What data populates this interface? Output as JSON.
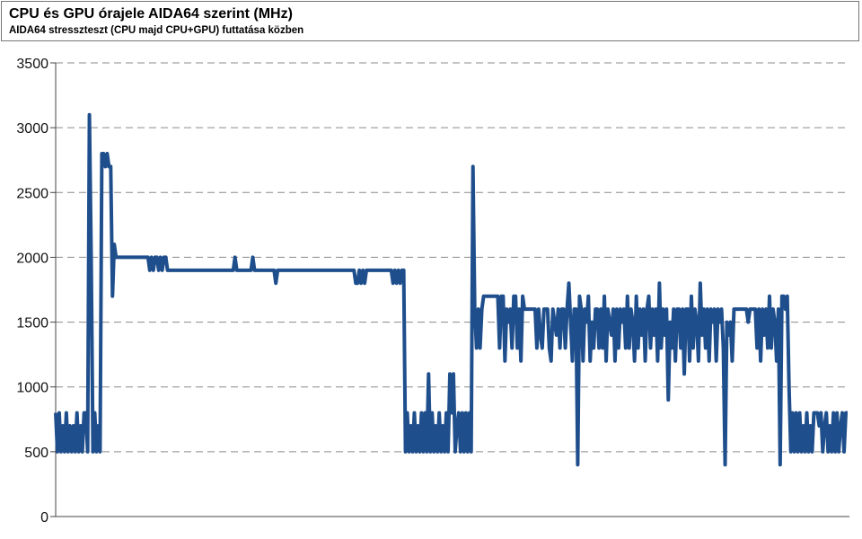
{
  "header": {
    "title": "CPU és GPU órajele AIDA64 szerint (MHz)",
    "subtitle": "AIDA64 stresszteszt (CPU majd CPU+GPU) futtatása közben"
  },
  "chart_data": {
    "type": "line",
    "title": "CPU és GPU órajele AIDA64 szerint (MHz)",
    "subtitle": "AIDA64 stresszteszt (CPU majd CPU+GPU) futtatása közben",
    "xlabel": "",
    "ylabel": "",
    "ylim": [
      0,
      3500
    ],
    "yticks": [
      0,
      500,
      1000,
      1500,
      2000,
      2500,
      3000,
      3500
    ],
    "grid": true,
    "legend": "none",
    "color": "#1F4E8C",
    "series": [
      {
        "values": [
          800,
          500,
          800,
          500,
          700,
          500,
          800,
          500,
          700,
          500,
          700,
          500,
          800,
          500,
          700,
          500,
          800,
          800,
          500,
          3100,
          2000,
          500,
          800,
          500,
          700,
          500,
          2800,
          2800,
          2700,
          2800,
          2700,
          2700,
          1700,
          2100,
          2000,
          2000,
          2000,
          2000,
          2000,
          2000,
          2000,
          2000,
          2000,
          2000,
          2000,
          2000,
          2000,
          2000,
          2000,
          2000,
          2000,
          2000,
          2000,
          1900,
          2000,
          1900,
          2000,
          2000,
          1900,
          2000,
          1900,
          2000,
          2000,
          1900,
          1900,
          1900,
          1900,
          1900,
          1900,
          1900,
          1900,
          1900,
          1900,
          1900,
          1900,
          1900,
          1900,
          1900,
          1900,
          1900,
          1900,
          1900,
          1900,
          1900,
          1900,
          1900,
          1900,
          1900,
          1900,
          1900,
          1900,
          1900,
          1900,
          1900,
          1900,
          1900,
          1900,
          1900,
          1900,
          1900,
          1900,
          2000,
          1900,
          1900,
          1900,
          1900,
          1900,
          1900,
          1900,
          1900,
          1900,
          2000,
          1900,
          1900,
          1900,
          1900,
          1900,
          1900,
          1900,
          1900,
          1900,
          1900,
          1900,
          1900,
          1800,
          1900,
          1900,
          1900,
          1900,
          1900,
          1900,
          1900,
          1900,
          1900,
          1900,
          1900,
          1900,
          1900,
          1900,
          1900,
          1900,
          1900,
          1900,
          1900,
          1900,
          1900,
          1900,
          1900,
          1900,
          1900,
          1900,
          1900,
          1900,
          1900,
          1900,
          1900,
          1900,
          1900,
          1900,
          1900,
          1900,
          1900,
          1900,
          1900,
          1900,
          1900,
          1900,
          1900,
          1900,
          1800,
          1800,
          1900,
          1800,
          1900,
          1800,
          1900,
          1900,
          1900,
          1900,
          1900,
          1900,
          1900,
          1900,
          1900,
          1900,
          1900,
          1900,
          1900,
          1900,
          1900,
          1800,
          1900,
          1800,
          1900,
          1800,
          1900,
          1900,
          500,
          800,
          500,
          700,
          500,
          800,
          500,
          700,
          500,
          800,
          500,
          800,
          500,
          1100,
          500,
          800,
          500,
          700,
          500,
          800,
          500,
          700,
          500,
          800,
          500,
          1100,
          800,
          1100,
          500,
          700,
          800,
          500,
          800,
          500,
          800,
          500,
          800,
          500,
          2700,
          1600,
          1300,
          1600,
          1300,
          1600,
          1700,
          1700,
          1700,
          1700,
          1700,
          1700,
          1700,
          1700,
          1700,
          1300,
          1700,
          1700,
          1200,
          1600,
          1500,
          1600,
          1300,
          1700,
          1700,
          1300,
          1600,
          1200,
          1700,
          1600,
          1600,
          1600,
          1600,
          1600,
          1600,
          1600,
          1300,
          1600,
          1400,
          1300,
          1600,
          1600,
          1600,
          1300,
          1200,
          1600,
          1500,
          1400,
          1600,
          1300,
          1600,
          1600,
          1300,
          1600,
          1800,
          1500,
          1200,
          1600,
          1600,
          400,
          1700,
          1600,
          1200,
          1600,
          1500,
          1700,
          1200,
          1500,
          1300,
          1600,
          1600,
          1300,
          1600,
          1300,
          1700,
          1200,
          1600,
          1500,
          1400,
          1600,
          1200,
          1600,
          1300,
          1600,
          1500,
          1600,
          1300,
          1700,
          1300,
          1600,
          1500,
          1200,
          1700,
          1300,
          1600,
          1400,
          1600,
          1200,
          1600,
          1700,
          1300,
          1600,
          1400,
          1600,
          1200,
          1800,
          1300,
          1600,
          1400,
          1600,
          900,
          1500,
          1300,
          1600,
          1200,
          1600,
          1600,
          1300,
          1600,
          1100,
          1600,
          1600,
          1200,
          1700,
          1300,
          1600,
          1500,
          1200,
          1800,
          1400,
          1600,
          1300,
          1600,
          1200,
          1600,
          1500,
          1600,
          1200,
          1600,
          1500,
          1600,
          1300,
          400,
          1500,
          1400,
          1500,
          1200,
          1600,
          1600,
          1600,
          1600,
          1600,
          1600,
          1600,
          1600,
          1500,
          1600,
          1600,
          1600,
          1600,
          1300,
          1600,
          1200,
          1600,
          1400,
          1600,
          1300,
          1700,
          1300,
          1600,
          1500,
          1200,
          1600,
          400,
          1700,
          1700,
          1600,
          1700,
          1000,
          500,
          800,
          500,
          800,
          500,
          800,
          500,
          700,
          500,
          800,
          500,
          700,
          500,
          800,
          800,
          800,
          700,
          800,
          500,
          700,
          800,
          500,
          700,
          500,
          800,
          500,
          800,
          500,
          700,
          800,
          500,
          800,
          800
        ]
      }
    ]
  }
}
